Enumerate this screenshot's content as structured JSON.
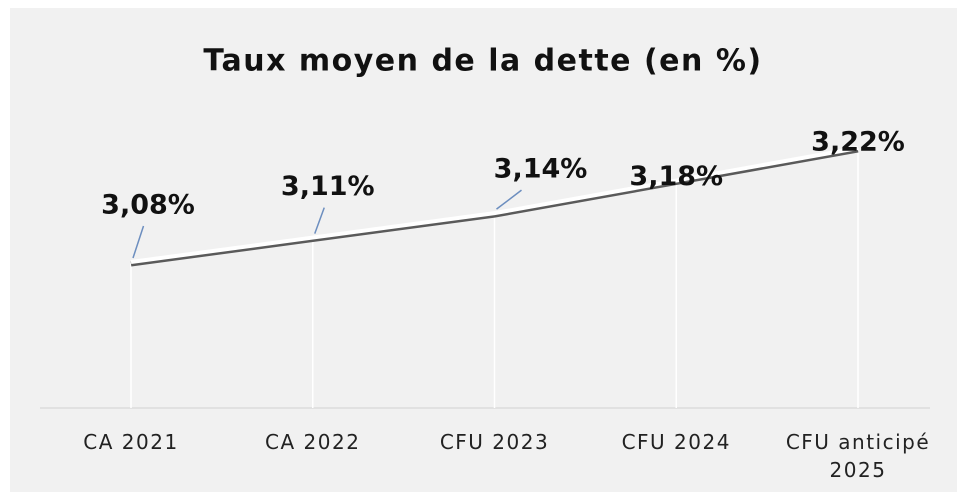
{
  "chart_data": {
    "type": "line",
    "title": "Taux moyen de la dette (en %)",
    "categories": [
      "CA 2021",
      "CA 2022",
      "CFU 2023",
      "CFU 2024",
      "CFU anticipé 2025"
    ],
    "values": [
      3.08,
      3.11,
      3.14,
      3.18,
      3.22
    ],
    "value_labels": [
      "3,08%",
      "3,11%",
      "3,14%",
      "3,18%",
      "3,22%"
    ],
    "color": "#ffffff"
  }
}
